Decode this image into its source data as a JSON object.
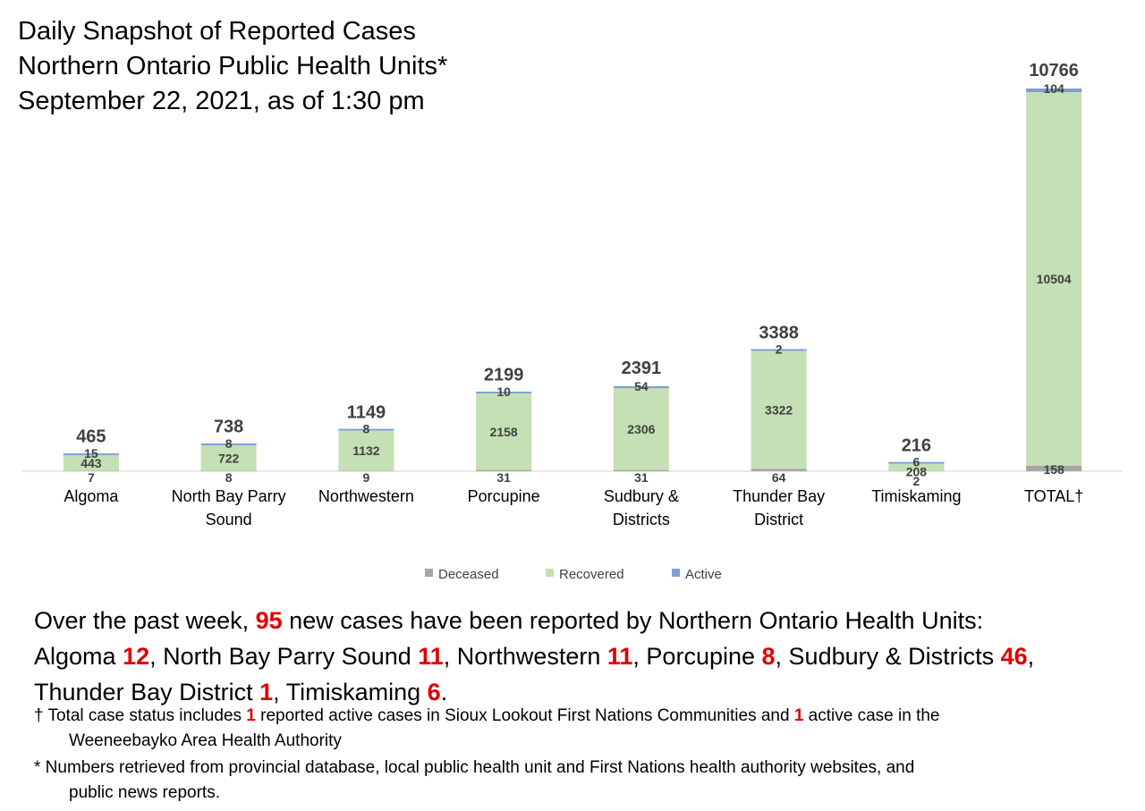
{
  "title": {
    "line1": "Daily Snapshot of Reported Cases",
    "line2": "Northern Ontario Public Health Units*",
    "line3": "September 22, 2021, as of 1:30 pm"
  },
  "chart_data": {
    "type": "bar",
    "stacked": true,
    "categories": [
      [
        "Algoma"
      ],
      [
        "North Bay Parry",
        "Sound"
      ],
      [
        "Northwestern"
      ],
      [
        "Porcupine"
      ],
      [
        "Sudbury &",
        "Districts"
      ],
      [
        "Thunder Bay",
        "District"
      ],
      [
        "Timiskaming"
      ],
      [
        "TOTAL†"
      ]
    ],
    "series": [
      {
        "name": "Deceased",
        "color": "#a6a6a6",
        "values": [
          7,
          8,
          9,
          31,
          31,
          64,
          2,
          158
        ]
      },
      {
        "name": "Recovered",
        "color": "#c5e0b4",
        "values": [
          443,
          722,
          1132,
          2158,
          2306,
          3322,
          208,
          10504
        ]
      },
      {
        "name": "Active",
        "color": "#7f9fd6",
        "values": [
          15,
          8,
          8,
          10,
          54,
          2,
          6,
          104
        ]
      }
    ],
    "totals": [
      465,
      738,
      1149,
      2199,
      2391,
      3388,
      216,
      10766
    ],
    "ylim": [
      0,
      10766
    ],
    "grid": false,
    "legend": "bottom"
  },
  "summary": {
    "p1": "Over the past week, ",
    "n1": "95",
    "p2": " new cases have been reported by Northern Ontario Health Units:",
    "p3": "Algoma ",
    "n2": "12",
    "p4": ", North Bay Parry Sound ",
    "n3": "11",
    "p5": ", Northwestern ",
    "n4": "11",
    "p6": ", Porcupine ",
    "n5": "8",
    "p7": ", Sudbury & Districts ",
    "n6": "46",
    "p8": ",",
    "p9": "Thunder Bay District ",
    "n7": "1",
    "p10": ", Timiskaming ",
    "n8": "6",
    "p11": "."
  },
  "footnotes": {
    "f1_a": "† Total case status includes ",
    "f1_n1": "1",
    "f1_b": " reported active cases in Sioux Lookout First Nations Communities and ",
    "f1_n2": "1",
    "f1_c": " active case in the",
    "f1_d": "Weeneebayko Area Health Authority",
    "f2_a": "* Numbers retrieved from provincial database, local public health unit and First Nations health authority websites, and",
    "f2_b": "public news reports."
  }
}
